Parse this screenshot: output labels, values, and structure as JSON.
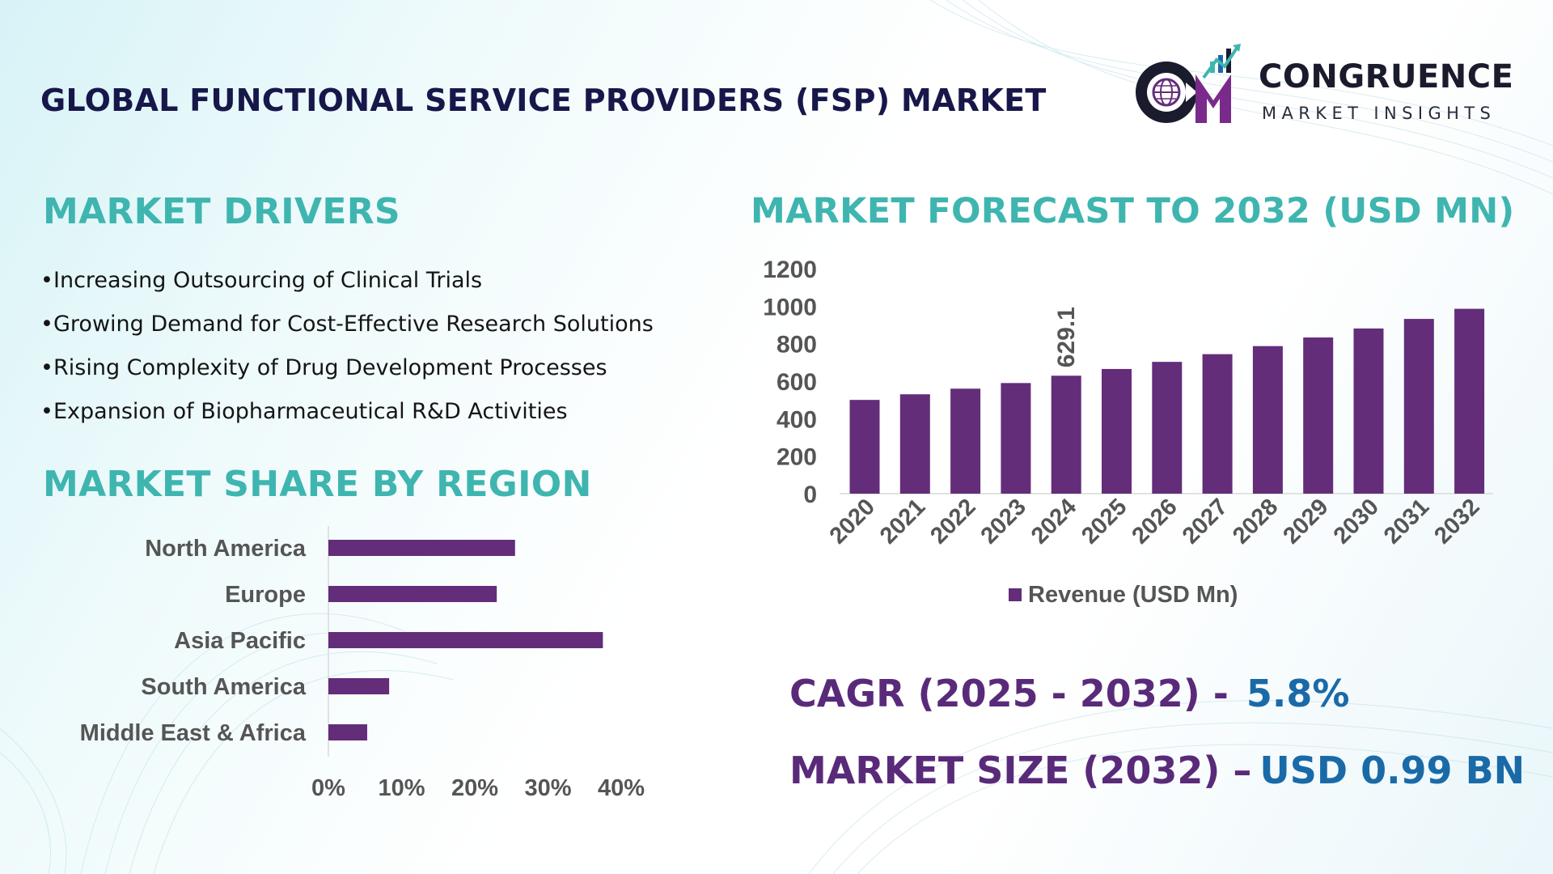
{
  "header": {
    "title": "GLOBAL FUNCTIONAL SERVICE PROVIDERS (FSP) MARKET"
  },
  "logo": {
    "name": "CONGRUENCE",
    "subtitle": "MARKET INSIGHTS",
    "icon": "cm-globe-logo-icon"
  },
  "drivers": {
    "title": "MARKET DRIVERS",
    "items": [
      "Increasing Outsourcing of Clinical Trials",
      "Growing Demand for Cost-Effective Research Solutions",
      "Rising Complexity of Drug Development Processes",
      "Expansion of Biopharmaceutical  R&D Activities"
    ]
  },
  "region": {
    "title": "MARKET SHARE BY REGION"
  },
  "forecast": {
    "title": "MARKET FORECAST TO 2032 (USD MN)"
  },
  "stats": {
    "cagr_label": "CAGR (2025 - 2032) -",
    "cagr_value": "5.8%",
    "size_label": "MARKET SIZE (2032) –",
    "size_value": "USD 0.99 BN"
  },
  "colors": {
    "bar": "#632d7a",
    "teal": "#3fb5b0",
    "title_dark": "#17174a",
    "value_blue": "#1a6aa8",
    "stat_purple": "#5a2a7a"
  },
  "chart_data": [
    {
      "type": "bar",
      "orientation": "horizontal",
      "categories": [
        "North America",
        "Europe",
        "Asia Pacific",
        "South America",
        "Middle East & Africa"
      ],
      "values": [
        25.5,
        23,
        37.5,
        8.3,
        5.3
      ],
      "xlim": [
        0,
        40
      ],
      "ticks": [
        "0%",
        "10%",
        "20%",
        "30%",
        "40%"
      ],
      "grid": false
    },
    {
      "type": "bar",
      "categories": [
        "2020",
        "2021",
        "2022",
        "2023",
        "2024",
        "2025",
        "2026",
        "2027",
        "2028",
        "2029",
        "2030",
        "2031",
        "2032"
      ],
      "series": [
        {
          "name": "Revenue (USD Mn)",
          "values": [
            500,
            530,
            560,
            590,
            629.1,
            665,
            703,
            744,
            787,
            833,
            881,
            932,
            986
          ]
        }
      ],
      "data_labels": [
        {
          "index": 4,
          "text": "629.1"
        }
      ],
      "ylim": [
        0,
        1200
      ],
      "yticks": [
        "0",
        "200",
        "400",
        "600",
        "800",
        "1000",
        "1200"
      ],
      "legend": "bottom",
      "grid": false
    }
  ]
}
